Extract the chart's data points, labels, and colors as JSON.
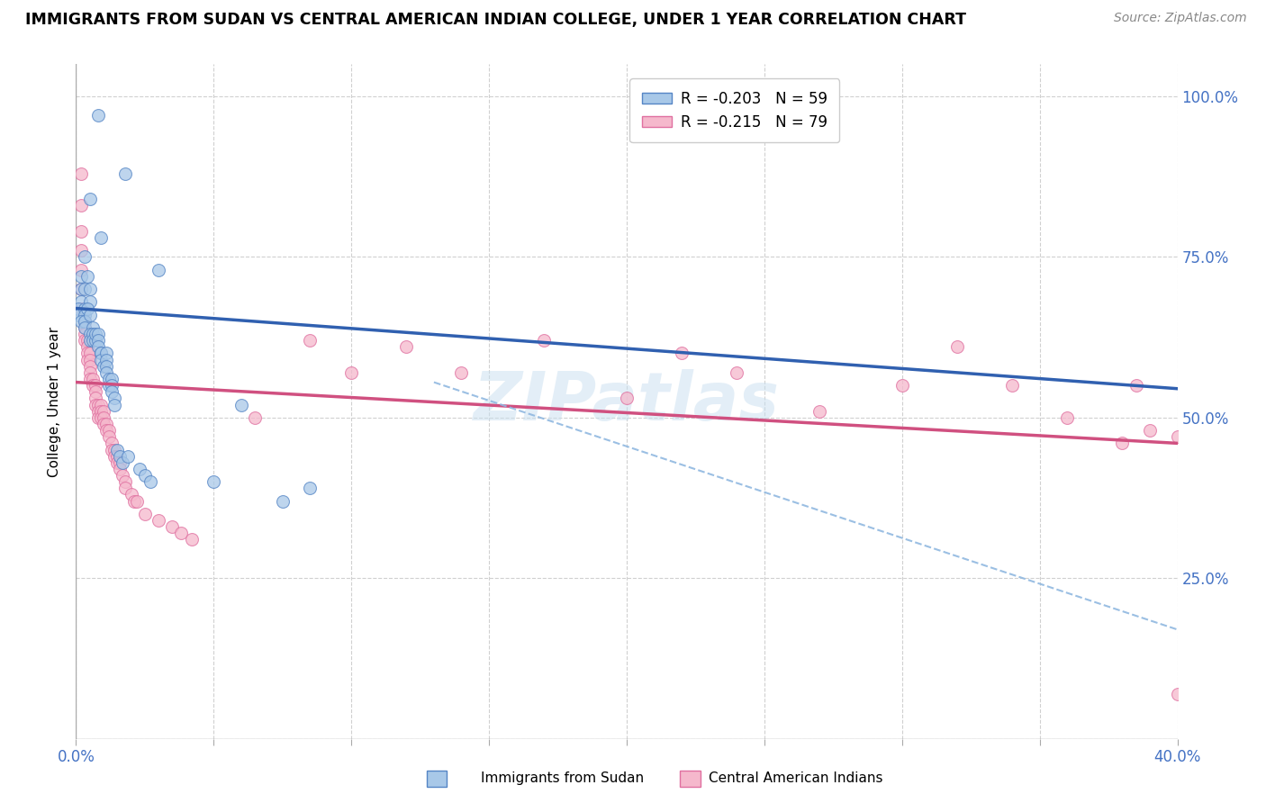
{
  "title": "IMMIGRANTS FROM SUDAN VS CENTRAL AMERICAN INDIAN COLLEGE, UNDER 1 YEAR CORRELATION CHART",
  "source": "Source: ZipAtlas.com",
  "ylabel": "College, Under 1 year",
  "xlim": [
    0.0,
    0.4
  ],
  "ylim": [
    0.0,
    1.05
  ],
  "xticks": [
    0.0,
    0.05,
    0.1,
    0.15,
    0.2,
    0.25,
    0.3,
    0.35,
    0.4
  ],
  "yticks_right": [
    0.0,
    0.25,
    0.5,
    0.75,
    1.0
  ],
  "yticklabels_right": [
    "",
    "25.0%",
    "50.0%",
    "75.0%",
    "100.0%"
  ],
  "legend_r1": "R = -0.203",
  "legend_n1": "N = 59",
  "legend_r2": "R = -0.215",
  "legend_n2": "N = 79",
  "blue_fill": "#a8c8e8",
  "pink_fill": "#f5b8cc",
  "blue_edge": "#5585c5",
  "pink_edge": "#e070a0",
  "blue_line_color": "#3060b0",
  "pink_line_color": "#d05080",
  "dashed_line_color": "#90b8e0",
  "watermark": "ZIPatlas",
  "blue_trend": [
    0.0,
    0.67,
    0.4,
    0.545
  ],
  "pink_trend": [
    0.0,
    0.555,
    0.4,
    0.46
  ],
  "dashed_trend": [
    0.13,
    0.555,
    0.4,
    0.17
  ],
  "blue_scatter_x": [
    0.008,
    0.018,
    0.005,
    0.009,
    0.003,
    0.002,
    0.002,
    0.003,
    0.004,
    0.002,
    0.001,
    0.001,
    0.003,
    0.003,
    0.003,
    0.002,
    0.003,
    0.003,
    0.005,
    0.005,
    0.004,
    0.005,
    0.006,
    0.005,
    0.005,
    0.006,
    0.006,
    0.007,
    0.007,
    0.008,
    0.008,
    0.008,
    0.009,
    0.009,
    0.009,
    0.01,
    0.011,
    0.011,
    0.011,
    0.011,
    0.012,
    0.012,
    0.013,
    0.013,
    0.013,
    0.014,
    0.014,
    0.015,
    0.016,
    0.017,
    0.019,
    0.023,
    0.025,
    0.027,
    0.03,
    0.05,
    0.06,
    0.075,
    0.085
  ],
  "blue_scatter_y": [
    0.97,
    0.88,
    0.84,
    0.78,
    0.75,
    0.72,
    0.7,
    0.7,
    0.72,
    0.68,
    0.67,
    0.66,
    0.67,
    0.66,
    0.65,
    0.65,
    0.65,
    0.64,
    0.7,
    0.68,
    0.67,
    0.66,
    0.64,
    0.63,
    0.62,
    0.63,
    0.62,
    0.62,
    0.63,
    0.63,
    0.62,
    0.61,
    0.6,
    0.6,
    0.59,
    0.58,
    0.6,
    0.59,
    0.58,
    0.57,
    0.55,
    0.56,
    0.56,
    0.55,
    0.54,
    0.53,
    0.52,
    0.45,
    0.44,
    0.43,
    0.44,
    0.42,
    0.41,
    0.4,
    0.73,
    0.4,
    0.52,
    0.37,
    0.39
  ],
  "pink_scatter_x": [
    0.002,
    0.002,
    0.002,
    0.002,
    0.002,
    0.002,
    0.002,
    0.003,
    0.003,
    0.003,
    0.003,
    0.003,
    0.003,
    0.004,
    0.004,
    0.004,
    0.004,
    0.005,
    0.005,
    0.005,
    0.005,
    0.005,
    0.006,
    0.006,
    0.007,
    0.007,
    0.007,
    0.007,
    0.008,
    0.008,
    0.008,
    0.009,
    0.009,
    0.009,
    0.01,
    0.01,
    0.01,
    0.011,
    0.011,
    0.012,
    0.012,
    0.013,
    0.013,
    0.014,
    0.014,
    0.015,
    0.015,
    0.016,
    0.016,
    0.017,
    0.018,
    0.018,
    0.02,
    0.021,
    0.022,
    0.025,
    0.03,
    0.035,
    0.038,
    0.042,
    0.065,
    0.085,
    0.1,
    0.12,
    0.14,
    0.17,
    0.2,
    0.22,
    0.24,
    0.27,
    0.3,
    0.32,
    0.34,
    0.36,
    0.38,
    0.385,
    0.39,
    0.4,
    0.4
  ],
  "pink_scatter_y": [
    0.88,
    0.83,
    0.79,
    0.76,
    0.73,
    0.7,
    0.67,
    0.67,
    0.65,
    0.65,
    0.64,
    0.63,
    0.62,
    0.62,
    0.61,
    0.6,
    0.59,
    0.6,
    0.59,
    0.58,
    0.57,
    0.56,
    0.56,
    0.55,
    0.55,
    0.54,
    0.53,
    0.52,
    0.52,
    0.51,
    0.5,
    0.52,
    0.51,
    0.5,
    0.51,
    0.5,
    0.49,
    0.49,
    0.48,
    0.48,
    0.47,
    0.46,
    0.45,
    0.45,
    0.44,
    0.44,
    0.43,
    0.43,
    0.42,
    0.41,
    0.4,
    0.39,
    0.38,
    0.37,
    0.37,
    0.35,
    0.34,
    0.33,
    0.32,
    0.31,
    0.5,
    0.62,
    0.57,
    0.61,
    0.57,
    0.62,
    0.53,
    0.6,
    0.57,
    0.51,
    0.55,
    0.61,
    0.55,
    0.5,
    0.46,
    0.55,
    0.48,
    0.07,
    0.47
  ]
}
